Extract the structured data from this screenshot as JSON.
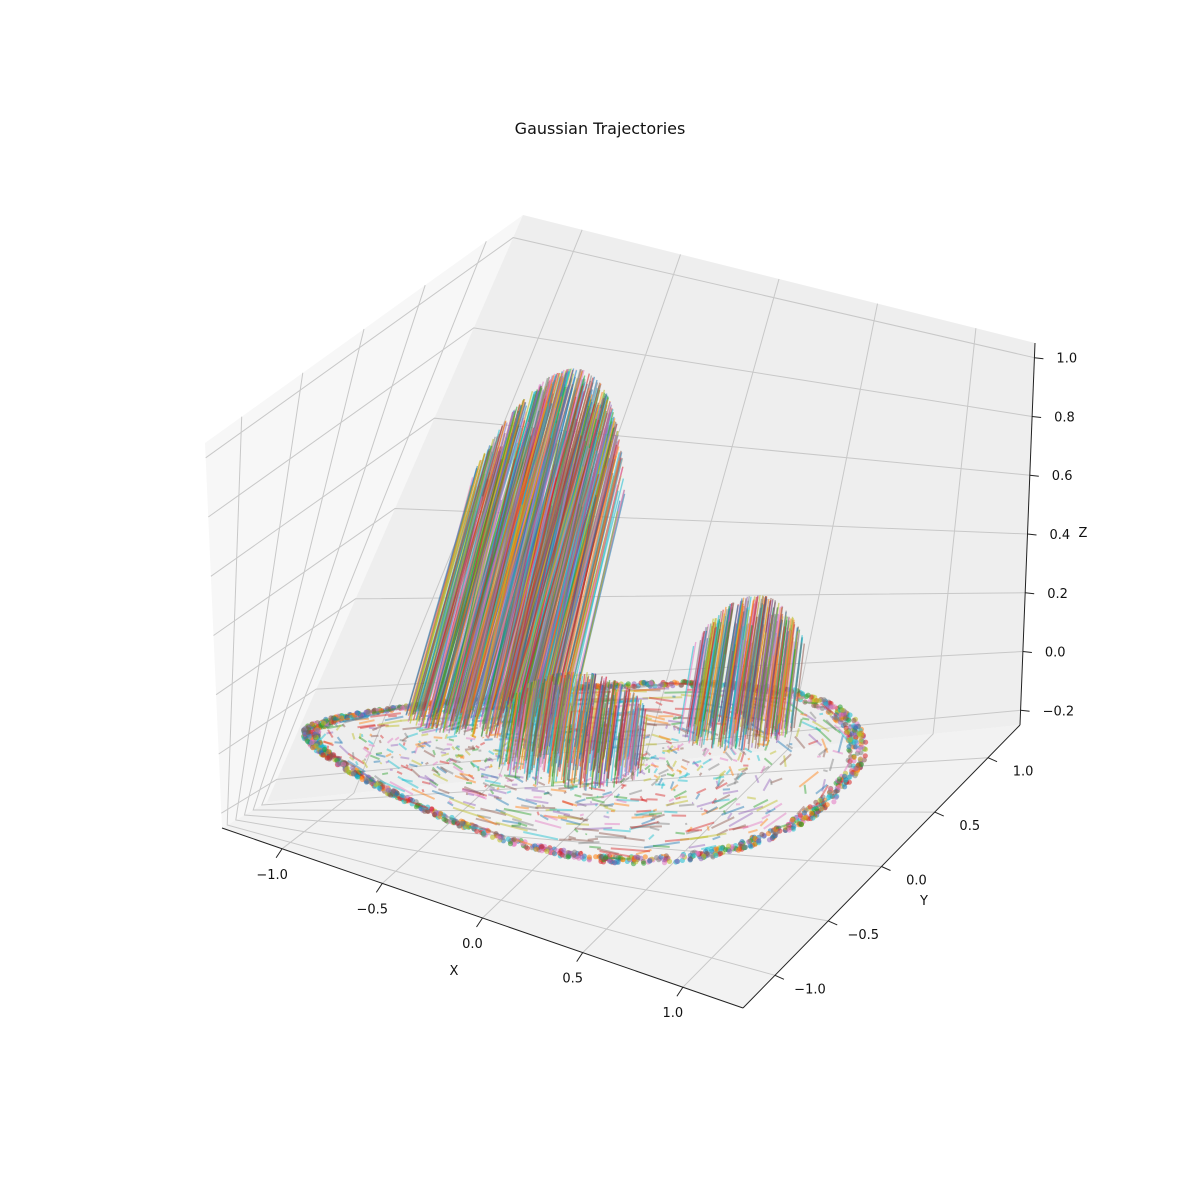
{
  "chart_data": {
    "type": "3d-line",
    "title": "Gaussian Trajectories",
    "xlabel": "X",
    "ylabel": "Y",
    "zlabel": "Z",
    "x_ticks": [
      "−1.0",
      "−0.5",
      "0.0",
      "0.5",
      "1.0"
    ],
    "y_ticks": [
      "−1.0",
      "−0.5",
      "0.0",
      "0.5",
      "1.0"
    ],
    "z_ticks": [
      "−0.2",
      "0.0",
      "0.2",
      "0.4",
      "0.6",
      "0.8",
      "1.0"
    ],
    "x_tick_values": [
      -1.0,
      -0.5,
      0.0,
      0.5,
      1.0
    ],
    "y_tick_values": [
      -1.0,
      -0.5,
      0.0,
      0.5,
      1.0
    ],
    "z_tick_values": [
      -0.2,
      0.0,
      0.2,
      0.4,
      0.6,
      0.8,
      1.0
    ],
    "xlim": [
      -1.3,
      1.3
    ],
    "ylim": [
      -1.3,
      1.3
    ],
    "zlim": [
      -0.25,
      1.05
    ],
    "grid": true,
    "ring_radius": 1.1,
    "ring_z": 0.0,
    "peaks": [
      {
        "x": -0.5,
        "y": 0.5,
        "height": 0.95
      },
      {
        "x": 0.5,
        "y": 0.5,
        "height": 0.42
      },
      {
        "x": 0.0,
        "y": -0.1,
        "height": 0.28
      }
    ],
    "series_colors": [
      "#1f77b4",
      "#ff7f0e",
      "#2ca02c",
      "#d62728",
      "#9467bd",
      "#8c564b",
      "#e377c2",
      "#7f7f7f",
      "#bcbd22",
      "#17becf"
    ]
  }
}
